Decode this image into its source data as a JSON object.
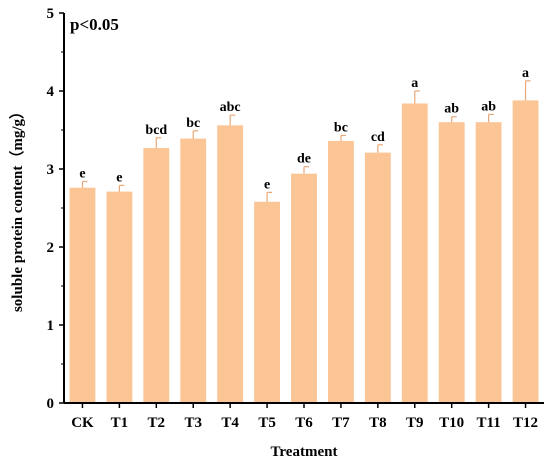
{
  "chart_data": {
    "type": "bar",
    "annotation": "p<0.05",
    "xlabel": "Treatment",
    "ylabel": "soluble protein content（mg/g）",
    "ylim": [
      0,
      5
    ],
    "yticks": [
      0,
      1,
      2,
      3,
      4,
      5
    ],
    "categories": [
      "CK",
      "T1",
      "T2",
      "T3",
      "T4",
      "T5",
      "T6",
      "T7",
      "T8",
      "T9",
      "T10",
      "T11",
      "T12"
    ],
    "values": [
      2.76,
      2.71,
      3.27,
      3.39,
      3.56,
      2.58,
      2.94,
      3.36,
      3.21,
      3.84,
      3.6,
      3.6,
      3.88
    ],
    "errors": [
      0.08,
      0.08,
      0.13,
      0.1,
      0.13,
      0.12,
      0.09,
      0.07,
      0.1,
      0.16,
      0.07,
      0.1,
      0.25
    ],
    "significance": [
      "e",
      "e",
      "bcd",
      "bc",
      "abc",
      "e",
      "de",
      "bc",
      "cd",
      "a",
      "ab",
      "ab",
      "a"
    ],
    "colors": {
      "bar": "#FBC596",
      "error_bar": "#E8A878",
      "axis": "#000000"
    },
    "grid": false
  }
}
